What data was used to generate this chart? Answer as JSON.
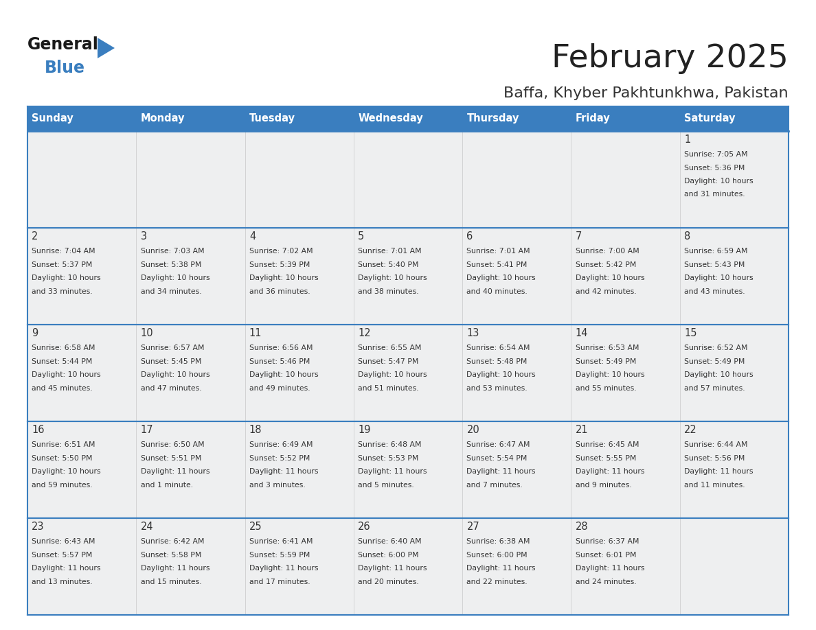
{
  "title": "February 2025",
  "subtitle": "Baffa, Khyber Pakhtunkhwa, Pakistan",
  "header_color": "#3a7ebf",
  "header_text_color": "#ffffff",
  "cell_bg": "#eeeff0",
  "border_color": "#3a7ebf",
  "text_color": "#333333",
  "days_of_week": [
    "Sunday",
    "Monday",
    "Tuesday",
    "Wednesday",
    "Thursday",
    "Friday",
    "Saturday"
  ],
  "calendar_data": [
    [
      {
        "day": null,
        "sunrise": null,
        "sunset": null,
        "daylight_line1": null,
        "daylight_line2": null
      },
      {
        "day": null,
        "sunrise": null,
        "sunset": null,
        "daylight_line1": null,
        "daylight_line2": null
      },
      {
        "day": null,
        "sunrise": null,
        "sunset": null,
        "daylight_line1": null,
        "daylight_line2": null
      },
      {
        "day": null,
        "sunrise": null,
        "sunset": null,
        "daylight_line1": null,
        "daylight_line2": null
      },
      {
        "day": null,
        "sunrise": null,
        "sunset": null,
        "daylight_line1": null,
        "daylight_line2": null
      },
      {
        "day": null,
        "sunrise": null,
        "sunset": null,
        "daylight_line1": null,
        "daylight_line2": null
      },
      {
        "day": "1",
        "sunrise": "Sunrise: 7:05 AM",
        "sunset": "Sunset: 5:36 PM",
        "daylight_line1": "Daylight: 10 hours",
        "daylight_line2": "and 31 minutes."
      }
    ],
    [
      {
        "day": "2",
        "sunrise": "Sunrise: 7:04 AM",
        "sunset": "Sunset: 5:37 PM",
        "daylight_line1": "Daylight: 10 hours",
        "daylight_line2": "and 33 minutes."
      },
      {
        "day": "3",
        "sunrise": "Sunrise: 7:03 AM",
        "sunset": "Sunset: 5:38 PM",
        "daylight_line1": "Daylight: 10 hours",
        "daylight_line2": "and 34 minutes."
      },
      {
        "day": "4",
        "sunrise": "Sunrise: 7:02 AM",
        "sunset": "Sunset: 5:39 PM",
        "daylight_line1": "Daylight: 10 hours",
        "daylight_line2": "and 36 minutes."
      },
      {
        "day": "5",
        "sunrise": "Sunrise: 7:01 AM",
        "sunset": "Sunset: 5:40 PM",
        "daylight_line1": "Daylight: 10 hours",
        "daylight_line2": "and 38 minutes."
      },
      {
        "day": "6",
        "sunrise": "Sunrise: 7:01 AM",
        "sunset": "Sunset: 5:41 PM",
        "daylight_line1": "Daylight: 10 hours",
        "daylight_line2": "and 40 minutes."
      },
      {
        "day": "7",
        "sunrise": "Sunrise: 7:00 AM",
        "sunset": "Sunset: 5:42 PM",
        "daylight_line1": "Daylight: 10 hours",
        "daylight_line2": "and 42 minutes."
      },
      {
        "day": "8",
        "sunrise": "Sunrise: 6:59 AM",
        "sunset": "Sunset: 5:43 PM",
        "daylight_line1": "Daylight: 10 hours",
        "daylight_line2": "and 43 minutes."
      }
    ],
    [
      {
        "day": "9",
        "sunrise": "Sunrise: 6:58 AM",
        "sunset": "Sunset: 5:44 PM",
        "daylight_line1": "Daylight: 10 hours",
        "daylight_line2": "and 45 minutes."
      },
      {
        "day": "10",
        "sunrise": "Sunrise: 6:57 AM",
        "sunset": "Sunset: 5:45 PM",
        "daylight_line1": "Daylight: 10 hours",
        "daylight_line2": "and 47 minutes."
      },
      {
        "day": "11",
        "sunrise": "Sunrise: 6:56 AM",
        "sunset": "Sunset: 5:46 PM",
        "daylight_line1": "Daylight: 10 hours",
        "daylight_line2": "and 49 minutes."
      },
      {
        "day": "12",
        "sunrise": "Sunrise: 6:55 AM",
        "sunset": "Sunset: 5:47 PM",
        "daylight_line1": "Daylight: 10 hours",
        "daylight_line2": "and 51 minutes."
      },
      {
        "day": "13",
        "sunrise": "Sunrise: 6:54 AM",
        "sunset": "Sunset: 5:48 PM",
        "daylight_line1": "Daylight: 10 hours",
        "daylight_line2": "and 53 minutes."
      },
      {
        "day": "14",
        "sunrise": "Sunrise: 6:53 AM",
        "sunset": "Sunset: 5:49 PM",
        "daylight_line1": "Daylight: 10 hours",
        "daylight_line2": "and 55 minutes."
      },
      {
        "day": "15",
        "sunrise": "Sunrise: 6:52 AM",
        "sunset": "Sunset: 5:49 PM",
        "daylight_line1": "Daylight: 10 hours",
        "daylight_line2": "and 57 minutes."
      }
    ],
    [
      {
        "day": "16",
        "sunrise": "Sunrise: 6:51 AM",
        "sunset": "Sunset: 5:50 PM",
        "daylight_line1": "Daylight: 10 hours",
        "daylight_line2": "and 59 minutes."
      },
      {
        "day": "17",
        "sunrise": "Sunrise: 6:50 AM",
        "sunset": "Sunset: 5:51 PM",
        "daylight_line1": "Daylight: 11 hours",
        "daylight_line2": "and 1 minute."
      },
      {
        "day": "18",
        "sunrise": "Sunrise: 6:49 AM",
        "sunset": "Sunset: 5:52 PM",
        "daylight_line1": "Daylight: 11 hours",
        "daylight_line2": "and 3 minutes."
      },
      {
        "day": "19",
        "sunrise": "Sunrise: 6:48 AM",
        "sunset": "Sunset: 5:53 PM",
        "daylight_line1": "Daylight: 11 hours",
        "daylight_line2": "and 5 minutes."
      },
      {
        "day": "20",
        "sunrise": "Sunrise: 6:47 AM",
        "sunset": "Sunset: 5:54 PM",
        "daylight_line1": "Daylight: 11 hours",
        "daylight_line2": "and 7 minutes."
      },
      {
        "day": "21",
        "sunrise": "Sunrise: 6:45 AM",
        "sunset": "Sunset: 5:55 PM",
        "daylight_line1": "Daylight: 11 hours",
        "daylight_line2": "and 9 minutes."
      },
      {
        "day": "22",
        "sunrise": "Sunrise: 6:44 AM",
        "sunset": "Sunset: 5:56 PM",
        "daylight_line1": "Daylight: 11 hours",
        "daylight_line2": "and 11 minutes."
      }
    ],
    [
      {
        "day": "23",
        "sunrise": "Sunrise: 6:43 AM",
        "sunset": "Sunset: 5:57 PM",
        "daylight_line1": "Daylight: 11 hours",
        "daylight_line2": "and 13 minutes."
      },
      {
        "day": "24",
        "sunrise": "Sunrise: 6:42 AM",
        "sunset": "Sunset: 5:58 PM",
        "daylight_line1": "Daylight: 11 hours",
        "daylight_line2": "and 15 minutes."
      },
      {
        "day": "25",
        "sunrise": "Sunrise: 6:41 AM",
        "sunset": "Sunset: 5:59 PM",
        "daylight_line1": "Daylight: 11 hours",
        "daylight_line2": "and 17 minutes."
      },
      {
        "day": "26",
        "sunrise": "Sunrise: 6:40 AM",
        "sunset": "Sunset: 6:00 PM",
        "daylight_line1": "Daylight: 11 hours",
        "daylight_line2": "and 20 minutes."
      },
      {
        "day": "27",
        "sunrise": "Sunrise: 6:38 AM",
        "sunset": "Sunset: 6:00 PM",
        "daylight_line1": "Daylight: 11 hours",
        "daylight_line2": "and 22 minutes."
      },
      {
        "day": "28",
        "sunrise": "Sunrise: 6:37 AM",
        "sunset": "Sunset: 6:01 PM",
        "daylight_line1": "Daylight: 11 hours",
        "daylight_line2": "and 24 minutes."
      },
      {
        "day": null,
        "sunrise": null,
        "sunset": null,
        "daylight_line1": null,
        "daylight_line2": null
      }
    ]
  ],
  "logo_text_general": "General",
  "logo_text_blue": "Blue",
  "logo_color_general": "#1a1a1a",
  "logo_color_blue": "#3a7ebf",
  "logo_triangle_color": "#3a7ebf"
}
